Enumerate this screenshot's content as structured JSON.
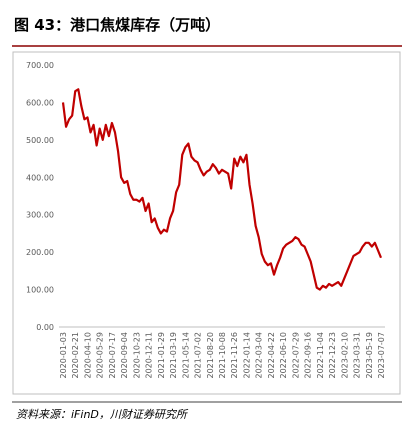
{
  "chart_data": {
    "type": "line",
    "title": "图 43：港口焦煤库存（万吨）",
    "source": "资料来源：iFinD，川财证券研究所",
    "categories": [
      "2020-01-03",
      null,
      null,
      null,
      "2020-02-21",
      null,
      null,
      null,
      "2020-04-10",
      null,
      null,
      null,
      "2020-05-29",
      null,
      null,
      null,
      "2020-07-17",
      null,
      null,
      null,
      "2020-09-04",
      null,
      null,
      null,
      "2020-10-23",
      null,
      null,
      null,
      "2020-12-11",
      null,
      null,
      null,
      "2021-01-29",
      null,
      null,
      null,
      "2021-03-19",
      null,
      null,
      null,
      "2021-05-14",
      null,
      null,
      null,
      "2021-07-02",
      null,
      null,
      null,
      "2021-08-20",
      null,
      null,
      null,
      "2021-10-08",
      null,
      null,
      null,
      "2021-11-26",
      null,
      null,
      null,
      "2022-01-14",
      null,
      null,
      null,
      "2022-03-04",
      null,
      null,
      null,
      "2022-04-22",
      null,
      null,
      null,
      "2022-06-10",
      null,
      null,
      null,
      "2022-07-29",
      null,
      null,
      null,
      "2022-09-16",
      null,
      null,
      null,
      "2022-11-04",
      null,
      null,
      null,
      "2022-12-23",
      null,
      null,
      null,
      "2023-02-10",
      null,
      null,
      null,
      "2023-03-31",
      null,
      null,
      null,
      "2023-05-19",
      null,
      null,
      null,
      "2023-07-07"
    ],
    "series": [
      {
        "color": "#c00000",
        "values": [
          600,
          535,
          555,
          565,
          630,
          635,
          590,
          555,
          560,
          520,
          540,
          485,
          530,
          500,
          540,
          510,
          545,
          520,
          470,
          400,
          385,
          390,
          355,
          340,
          340,
          335,
          345,
          310,
          330,
          280,
          290,
          265,
          250,
          260,
          255,
          290,
          310,
          360,
          380,
          460,
          480,
          490,
          455,
          445,
          440,
          420,
          405,
          415,
          420,
          435,
          425,
          410,
          420,
          415,
          410,
          370,
          450,
          430,
          455,
          440,
          460,
          380,
          330,
          270,
          240,
          195,
          175,
          165,
          170,
          140,
          165,
          185,
          210,
          220,
          225,
          230,
          240,
          235,
          220,
          215,
          195,
          175,
          140,
          105,
          100,
          110,
          105,
          115,
          110,
          115,
          120,
          110,
          130,
          150,
          170,
          190,
          195,
          200,
          215,
          225,
          225,
          215,
          225,
          205,
          185
        ]
      }
    ],
    "ylim": [
      0,
      700
    ],
    "yticks": [
      {
        "value": 0,
        "label": "0.00"
      },
      {
        "value": 100,
        "label": "100.00"
      },
      {
        "value": 200,
        "label": "200.00"
      },
      {
        "value": 300,
        "label": "300.00"
      },
      {
        "value": 400,
        "label": "400.00"
      },
      {
        "value": 500,
        "label": "500.00"
      },
      {
        "value": 600,
        "label": "600.00"
      },
      {
        "value": 700,
        "label": "700.00"
      }
    ],
    "grid": false
  }
}
